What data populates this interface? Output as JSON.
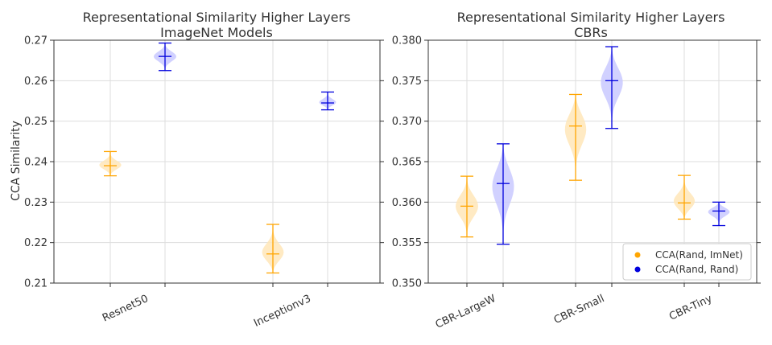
{
  "colors": {
    "orange": "#ffa500",
    "orange_fill": "#ffe6b8",
    "blue": "#0000dd",
    "blue_fill": "#c9c9ff",
    "grid": "#dddddd",
    "axis": "#333333"
  },
  "chart_data": [
    {
      "type": "violin",
      "title_line1": "Representational Similarity Higher Layers",
      "title_line2": "ImageNet Models",
      "ylabel": "CCA Similarity",
      "ylim": [
        0.21,
        0.27
      ],
      "yticks": [
        "0.21",
        "0.22",
        "0.23",
        "0.24",
        "0.25",
        "0.26",
        "0.27"
      ],
      "ytick_values": [
        0.21,
        0.22,
        0.23,
        0.24,
        0.25,
        0.26,
        0.27
      ],
      "categories": [
        "Resnet50",
        "Inceptionv3"
      ],
      "grid": true,
      "series": [
        {
          "name": "CCA(Rand, ImNet)",
          "color_key": "orange",
          "min": [
            0.2365,
            0.2125
          ],
          "median": [
            0.239,
            0.2172
          ],
          "max": [
            0.2425,
            0.2245
          ]
        },
        {
          "name": "CCA(Rand, Rand)",
          "color_key": "blue",
          "min": [
            0.2625,
            0.2528
          ],
          "median": [
            0.266,
            0.2545
          ],
          "max": [
            0.2693,
            0.2572
          ]
        }
      ]
    },
    {
      "type": "violin",
      "title_line1": "Representational Similarity Higher Layers",
      "title_line2": "CBRs",
      "ylabel": "",
      "ylim": [
        0.35,
        0.38
      ],
      "yticks": [
        "0.350",
        "0.355",
        "0.360",
        "0.365",
        "0.370",
        "0.375",
        "0.380"
      ],
      "ytick_values": [
        0.35,
        0.355,
        0.36,
        0.365,
        0.37,
        0.375,
        0.38
      ],
      "categories": [
        "CBR-LargeW",
        "CBR-Small",
        "CBR-Tiny"
      ],
      "grid": true,
      "legend_position": "lower-right",
      "series": [
        {
          "name": "CCA(Rand, ImNet)",
          "color_key": "orange",
          "min": [
            0.3557,
            0.3627,
            0.3579
          ],
          "median": [
            0.3595,
            0.3694,
            0.3599
          ],
          "max": [
            0.3632,
            0.3733,
            0.3633
          ]
        },
        {
          "name": "CCA(Rand, Rand)",
          "color_key": "blue",
          "min": [
            0.3548,
            0.3691,
            0.3571
          ],
          "median": [
            0.3623,
            0.375,
            0.3589
          ],
          "max": [
            0.3672,
            0.3792,
            0.36
          ]
        }
      ]
    }
  ],
  "legend": [
    {
      "label": "CCA(Rand, ImNet)",
      "color_key": "orange"
    },
    {
      "label": "CCA(Rand, Rand)",
      "color_key": "blue"
    }
  ]
}
